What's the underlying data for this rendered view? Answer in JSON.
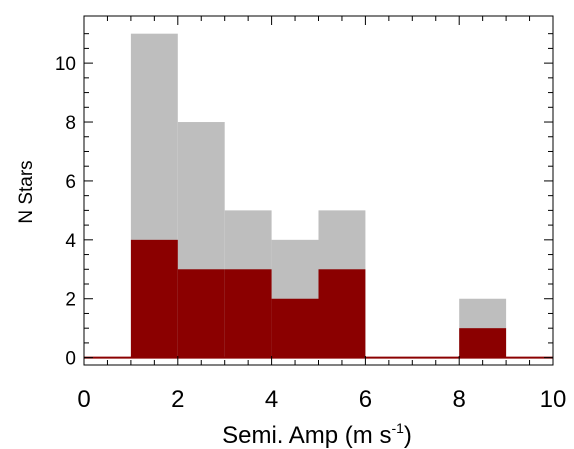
{
  "chart_data": {
    "type": "bar",
    "title": "",
    "xlabel_main": "Semi. Amp (m s",
    "xlabel_exp": "-1",
    "xlabel_end": ")",
    "ylabel": "N Stars",
    "xlim": [
      0,
      10
    ],
    "ylim": [
      -0.25,
      11.6
    ],
    "x_ticks": [
      "0",
      "2",
      "4",
      "6",
      "8",
      "10"
    ],
    "y_ticks": [
      "0",
      "2",
      "4",
      "6",
      "8",
      "10"
    ],
    "bin_edges": [
      0,
      1,
      2,
      3,
      4,
      5,
      6,
      7,
      8,
      9,
      10
    ],
    "series": [
      {
        "values": [
          0,
          11,
          8,
          5,
          4,
          5,
          0,
          0,
          2,
          0
        ],
        "color": "#bebebe"
      },
      {
        "values": [
          0,
          4,
          3,
          3,
          2,
          3,
          0,
          0,
          1,
          0
        ],
        "color": "#8b0000"
      }
    ],
    "grid": false
  }
}
